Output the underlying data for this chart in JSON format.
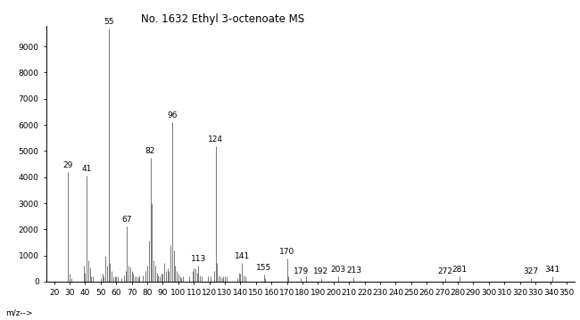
{
  "title": "No. 1632 Ethyl 3-octenoate MS",
  "xlabel": "m/z-->",
  "xlim": [
    15,
    355
  ],
  "ylim": [
    0,
    9800
  ],
  "xticks": [
    20,
    30,
    40,
    50,
    60,
    70,
    80,
    90,
    100,
    110,
    120,
    130,
    140,
    150,
    160,
    170,
    180,
    190,
    200,
    210,
    220,
    230,
    240,
    250,
    260,
    270,
    280,
    290,
    300,
    310,
    320,
    330,
    340,
    350
  ],
  "yticks": [
    0,
    1000,
    2000,
    3000,
    4000,
    5000,
    6000,
    7000,
    8000,
    9000
  ],
  "background_color": "#ffffff",
  "bar_color": "#555555",
  "peaks": {
    "29": 4200,
    "30": 300,
    "31": 150,
    "39": 600,
    "40": 350,
    "41": 4050,
    "42": 800,
    "43": 550,
    "44": 200,
    "45": 200,
    "50": 150,
    "51": 300,
    "52": 200,
    "53": 1000,
    "54": 600,
    "55": 9700,
    "56": 700,
    "57": 400,
    "58": 200,
    "59": 200,
    "60": 200,
    "61": 200,
    "63": 150,
    "65": 250,
    "66": 400,
    "67": 2100,
    "68": 600,
    "69": 550,
    "70": 400,
    "71": 300,
    "72": 200,
    "73": 200,
    "74": 180,
    "75": 250,
    "77": 250,
    "79": 400,
    "80": 600,
    "81": 1550,
    "82": 4750,
    "83": 3000,
    "84": 800,
    "85": 600,
    "86": 350,
    "87": 250,
    "88": 200,
    "89": 300,
    "90": 300,
    "91": 700,
    "92": 400,
    "93": 500,
    "94": 400,
    "95": 1400,
    "96": 6100,
    "97": 1200,
    "98": 600,
    "99": 400,
    "100": 300,
    "101": 200,
    "102": 150,
    "103": 200,
    "107": 200,
    "109": 400,
    "110": 500,
    "111": 500,
    "112": 350,
    "113": 600,
    "114": 250,
    "115": 200,
    "119": 200,
    "121": 200,
    "123": 400,
    "124": 5200,
    "125": 700,
    "126": 250,
    "127": 200,
    "128": 150,
    "129": 200,
    "130": 200,
    "131": 200,
    "138": 150,
    "139": 350,
    "140": 300,
    "141": 700,
    "142": 250,
    "143": 200,
    "155": 280,
    "156": 150,
    "170": 900,
    "171": 200,
    "179": 150,
    "182": 200,
    "192": 150,
    "203": 200,
    "213": 180,
    "272": 150,
    "281": 200,
    "327": 150,
    "341": 200
  },
  "labeled_peaks": {
    "29": 4200,
    "41": 4050,
    "55": 9700,
    "67": 2100,
    "82": 4750,
    "96": 6100,
    "124": 5200,
    "113": 600,
    "141": 700,
    "155": 280,
    "170": 900,
    "179": 150,
    "192": 150,
    "203": 200,
    "213": 180,
    "272": 150,
    "281": 200,
    "327": 150,
    "341": 200
  },
  "title_fontsize": 8.5,
  "tick_fontsize": 6.5,
  "label_fontsize": 6.5
}
